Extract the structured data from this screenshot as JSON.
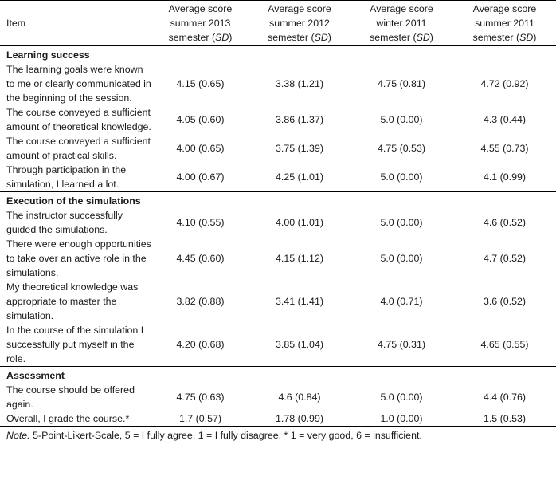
{
  "table": {
    "headers": {
      "item": "Item",
      "col1": [
        "Average score",
        "summer 2013",
        "semester (",
        "SD",
        ")"
      ],
      "col2": [
        "Average score",
        "summer 2012",
        "semester (",
        "SD",
        ")"
      ],
      "col3": [
        "Average score",
        "winter 2011",
        "semester (",
        "SD",
        ")"
      ],
      "col4": [
        "Average score",
        "summer 2011",
        "semester (",
        "SD",
        ")"
      ]
    },
    "sections": [
      {
        "title": "Learning success",
        "rows": [
          {
            "item": "The learning goals were known to me or clearly communicated in the beginning of the session.",
            "v1": "4.15 (0.65)",
            "v2": "3.38 (1.21)",
            "v3": "4.75 (0.81)",
            "v4": "4.72 (0.92)"
          },
          {
            "item": "The course conveyed a sufficient amount of theoretical knowledge.",
            "v1": "4.05 (0.60)",
            "v2": "3.86 (1.37)",
            "v3": "5.0 (0.00)",
            "v4": "4.3 (0.44)"
          },
          {
            "item": "The course conveyed a sufficient amount of practical skills.",
            "v1": "4.00 (0.65)",
            "v2": "3.75 (1.39)",
            "v3": "4.75 (0.53)",
            "v4": "4.55 (0.73)"
          },
          {
            "item": "Through participation in the simulation, I learned a lot.",
            "v1": "4.00 (0.67)",
            "v2": "4.25 (1.01)",
            "v3": "5.0 (0.00)",
            "v4": "4.1 (0.99)"
          }
        ]
      },
      {
        "title": "Execution of the simulations",
        "rows": [
          {
            "item": "The instructor successfully guided the simulations.",
            "v1": "4.10 (0.55)",
            "v2": "4.00 (1.01)",
            "v3": "5.0 (0.00)",
            "v4": "4.6 (0.52)"
          },
          {
            "item": "There were enough opportunities to take over an active role in the simulations.",
            "v1": "4.45 (0.60)",
            "v2": "4.15 (1.12)",
            "v3": "5.0 (0.00)",
            "v4": "4.7 (0.52)"
          },
          {
            "item": "My theoretical knowledge was appropriate to master the simulation.",
            "v1": "3.82 (0.88)",
            "v2": "3.41 (1.41)",
            "v3": "4.0 (0.71)",
            "v4": "3.6 (0.52)"
          },
          {
            "item": "In the course of the simulation I successfully put myself in the role.",
            "v1": "4.20 (0.68)",
            "v2": "3.85 (1.04)",
            "v3": "4.75 (0.31)",
            "v4": "4.65 (0.55)"
          }
        ]
      },
      {
        "title": "Assessment",
        "rows": [
          {
            "item": "The course should be offered again.",
            "v1": "4.75 (0.63)",
            "v2": "4.6 (0.84)",
            "v3": "5.0 (0.00)",
            "v4": "4.4 (0.76)"
          },
          {
            "item": "Overall, I grade the course.*",
            "v1": "1.7 (0.57)",
            "v2": "1.78 (0.99)",
            "v3": "1.0 (0.00)",
            "v4": "1.5 (0.53)"
          }
        ]
      }
    ]
  },
  "note": {
    "label": "Note.",
    "text": " 5-Point-Likert-Scale, 5 = I fully agree, 1 = I fully disagree. * 1 = very good, 6 = insufficient."
  }
}
